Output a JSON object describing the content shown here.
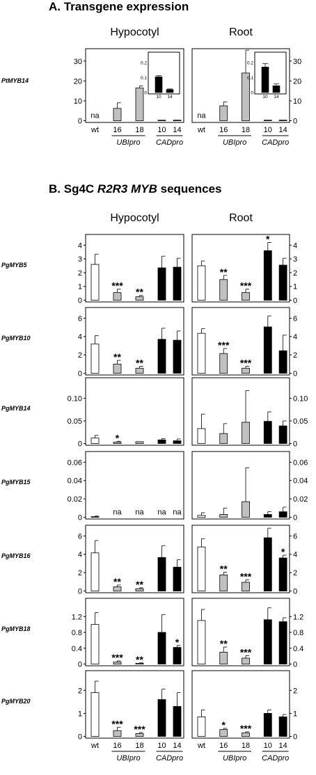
{
  "section_a": {
    "letter": "A.",
    "title": "Transgene expression",
    "panel_titles": [
      "Hypocotyl",
      "Root"
    ],
    "chart_data": {
      "type": "bar",
      "gene": "PtMYB14",
      "categories": [
        "wt",
        "16",
        "18",
        "10",
        "14"
      ],
      "groups": [
        {
          "label": "UBIpro",
          "categories": [
            "16",
            "18"
          ]
        },
        {
          "label": "CADpro",
          "categories": [
            "10",
            "14"
          ]
        }
      ],
      "ylim": [
        0,
        35
      ],
      "yticks": [
        0,
        10,
        20,
        30
      ],
      "panels": [
        {
          "name": "Hypocotyl",
          "values": [
            null,
            6.2,
            16.5,
            0.1,
            0.02
          ],
          "errors": [
            null,
            2.8,
            1.0,
            0,
            0
          ],
          "labels": [
            "na",
            "",
            "",
            "",
            ""
          ],
          "inset": {
            "categories": [
              "10",
              "14"
            ],
            "values": [
              0.105,
              0.02
            ],
            "errors": [
              0.008,
              0.004
            ],
            "ylim": [
              0,
              0.25
            ],
            "yticks": [
              "0",
              "0.1",
              "0.2"
            ]
          }
        },
        {
          "name": "Root",
          "values": [
            null,
            7.5,
            24.0,
            0.15,
            0.05
          ],
          "errors": [
            null,
            2.0,
            11.5,
            0,
            0
          ],
          "labels": [
            "na",
            "",
            "",
            "",
            ""
          ],
          "inset": {
            "categories": [
              "10",
              "14"
            ],
            "values": [
              0.17,
              0.045
            ],
            "errors": [
              0.022,
              0.012
            ],
            "ylim": [
              0,
              0.25
            ],
            "yticks": [
              "0",
              "0.1",
              "0.2"
            ]
          }
        }
      ]
    }
  },
  "section_b": {
    "letter": "B.",
    "title_pre": "Sg4C ",
    "title_italic": "R2R3 MYB",
    "title_post": " sequences",
    "panel_titles": [
      "Hypocotyl",
      "Root"
    ],
    "chart_data": {
      "type": "bar",
      "categories": [
        "wt",
        "16",
        "18",
        "10",
        "14"
      ],
      "groups": [
        {
          "label": "UBIpro",
          "categories": [
            "16",
            "18"
          ]
        },
        {
          "label": "CADpro",
          "categories": [
            "10",
            "14"
          ]
        }
      ],
      "bar_colors": [
        "#ffffff",
        "#c0c0c0",
        "#c0c0c0",
        "#000000",
        "#000000"
      ],
      "rows": [
        {
          "gene": "PgMYB5",
          "ylim": [
            0,
            4.6
          ],
          "yticks": [
            "0",
            "1",
            "2",
            "3",
            "4"
          ],
          "hypocotyl": {
            "values": [
              2.6,
              0.55,
              0.25,
              2.35,
              2.4
            ],
            "errors": [
              0.75,
              0.25,
              0.1,
              0.85,
              0.65
            ],
            "labels": [
              "",
              "***",
              "**",
              "",
              ""
            ]
          },
          "root": {
            "values": [
              2.5,
              1.5,
              0.55,
              3.6,
              2.55
            ],
            "errors": [
              0.35,
              0.3,
              0.25,
              0.6,
              0.5
            ],
            "labels": [
              "",
              "**",
              "***",
              "*",
              ""
            ]
          }
        },
        {
          "gene": "PgMYB10",
          "ylim": [
            0,
            6.9
          ],
          "yticks": [
            "0",
            "2",
            "4",
            "6"
          ],
          "hypocotyl": {
            "values": [
              3.2,
              1.0,
              0.55,
              3.7,
              3.6
            ],
            "errors": [
              0.9,
              0.4,
              0.2,
              1.2,
              1.0
            ],
            "labels": [
              "",
              "**",
              "**",
              "",
              ""
            ]
          },
          "root": {
            "values": [
              4.35,
              2.15,
              0.55,
              5.05,
              2.45
            ],
            "errors": [
              0.5,
              0.55,
              0.2,
              1.2,
              1.7
            ],
            "labels": [
              "",
              "***",
              "***",
              "",
              ""
            ]
          }
        },
        {
          "gene": "PgMYB14",
          "ylim": [
            0,
            0.14
          ],
          "yticks": [
            "0",
            "0.05",
            "0.10"
          ],
          "hypocotyl": {
            "values": [
              0.012,
              0.003,
              0.004,
              0.008,
              0.006
            ],
            "errors": [
              0.006,
              0.002,
              0,
              0.003,
              0.004
            ],
            "labels": [
              "",
              "*",
              "",
              "",
              ""
            ]
          },
          "root": {
            "values": [
              0.033,
              0.022,
              0.047,
              0.049,
              0.039
            ],
            "errors": [
              0.032,
              0.022,
              0.07,
              0.021,
              0.011
            ],
            "labels": [
              "",
              "",
              "",
              "",
              ""
            ]
          }
        },
        {
          "gene": "PgMYB15",
          "ylim": [
            0,
            0.069
          ],
          "yticks": [
            "0",
            "0.02",
            "0.04",
            "0.06"
          ],
          "hypocotyl": {
            "values": [
              0.0005,
              null,
              null,
              null,
              null
            ],
            "errors": [
              0.0008,
              null,
              null,
              null,
              null
            ],
            "labels": [
              "",
              "na",
              "na",
              "na",
              "na"
            ]
          },
          "root": {
            "values": [
              0.002,
              0.003,
              0.017,
              0.003,
              0.006
            ],
            "errors": [
              0.003,
              0.007,
              0.037,
              0.003,
              0.005
            ],
            "labels": [
              "",
              "",
              "",
              "",
              ""
            ]
          }
        },
        {
          "gene": "PgMYB16",
          "ylim": [
            0,
            6.9
          ],
          "yticks": [
            "0",
            "2",
            "4",
            "6"
          ],
          "hypocotyl": {
            "values": [
              4.15,
              0.45,
              0.25,
              3.65,
              2.6
            ],
            "errors": [
              1.35,
              0.2,
              0.1,
              1.3,
              0.8
            ],
            "labels": [
              "",
              "**",
              "**",
              "",
              ""
            ]
          },
          "root": {
            "values": [
              4.8,
              1.75,
              0.95,
              5.8,
              3.6
            ],
            "errors": [
              0.9,
              0.3,
              0.25,
              1.05,
              0.3
            ],
            "labels": [
              "",
              "**",
              "***",
              "",
              "*"
            ]
          }
        },
        {
          "gene": "PgMYB18",
          "ylim": [
            0,
            1.6
          ],
          "yticks": [
            "0",
            "0.4",
            "0.8",
            "1.2"
          ],
          "hypocotyl": {
            "values": [
              1.0,
              0.05,
              0.02,
              0.8,
              0.42
            ],
            "errors": [
              0.3,
              0.03,
              0.01,
              0.45,
              0.05
            ],
            "labels": [
              "",
              "***",
              "**",
              "",
              "*"
            ]
          },
          "root": {
            "values": [
              1.1,
              0.3,
              0.15,
              1.12,
              1.07
            ],
            "errors": [
              0.28,
              0.13,
              0.06,
              0.3,
              0.1
            ],
            "labels": [
              "",
              "**",
              "***",
              "",
              ""
            ]
          }
        },
        {
          "gene": "PgMYB20",
          "ylim": [
            0,
            2.75
          ],
          "yticks": [
            "0",
            "1",
            "2"
          ],
          "hypocotyl": {
            "values": [
              1.9,
              0.25,
              0.12,
              1.6,
              1.3
            ],
            "errors": [
              0.5,
              0.15,
              0.05,
              0.45,
              0.6
            ],
            "labels": [
              "",
              "***",
              "***",
              "",
              ""
            ]
          },
          "root": {
            "values": [
              0.85,
              0.3,
              0.15,
              1.0,
              0.85
            ],
            "errors": [
              0.3,
              0.05,
              0.05,
              0.15,
              0.1
            ],
            "labels": [
              "",
              "*",
              "***",
              "",
              ""
            ]
          }
        }
      ]
    }
  }
}
